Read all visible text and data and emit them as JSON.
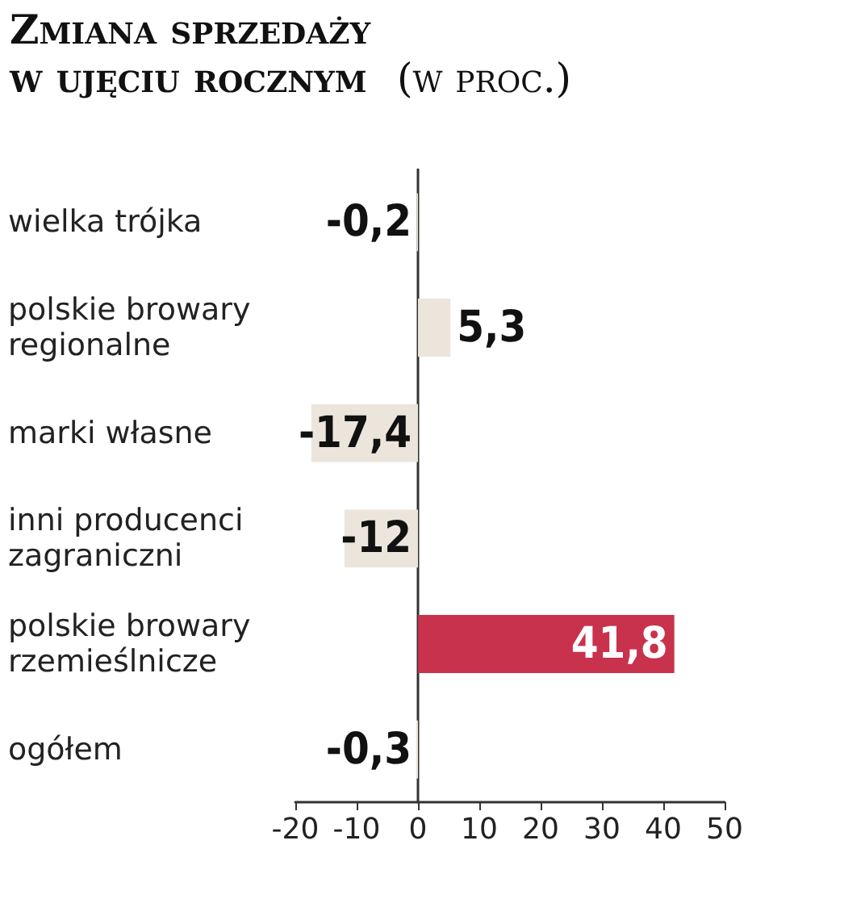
{
  "chart_data": {
    "type": "bar",
    "orientation": "horizontal",
    "title": "Zmiana sprzedaży w ujęciu rocznym",
    "subtitle": "(w proc.)",
    "categories": [
      "wielka trójka",
      "polskie browary regionalne",
      "marki własne",
      "inni producenci zagraniczni",
      "polskie browary rzemieślnicze",
      "ogółem"
    ],
    "values": [
      -0.2,
      5.3,
      -17.4,
      -12,
      41.8,
      -0.3
    ],
    "colors": [
      "#ebe5dc",
      "#ebe5dc",
      "#ebe5dc",
      "#ebe5dc",
      "#c9324c",
      "#ebe5dc"
    ],
    "value_labels": [
      "-0,2",
      "5,3",
      "-17,4",
      "-12",
      "41,8",
      "-0,3"
    ],
    "xlim": [
      -20,
      50
    ],
    "xticks": [
      -20,
      -10,
      0,
      10,
      20,
      30,
      40,
      50
    ]
  }
}
